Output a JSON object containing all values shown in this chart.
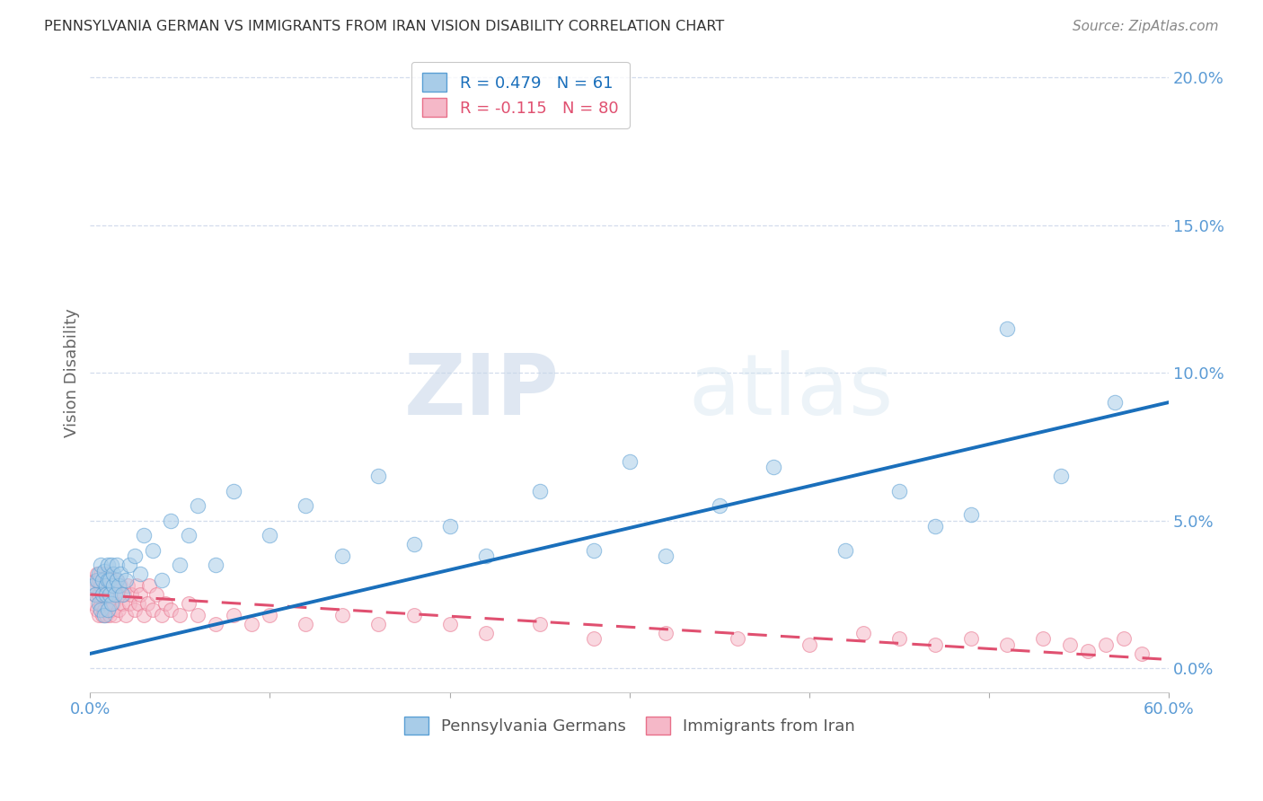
{
  "title": "PENNSYLVANIA GERMAN VS IMMIGRANTS FROM IRAN VISION DISABILITY CORRELATION CHART",
  "source": "Source: ZipAtlas.com",
  "ylabel": "Vision Disability",
  "xlim": [
    0,
    0.6
  ],
  "ylim": [
    -0.008,
    0.208
  ],
  "blue_R": 0.479,
  "blue_N": 61,
  "pink_R": -0.115,
  "pink_N": 80,
  "blue_color": "#a8cce8",
  "pink_color": "#f5b8c8",
  "blue_edge_color": "#5a9fd4",
  "pink_edge_color": "#e8708a",
  "blue_line_color": "#1a6fbb",
  "pink_line_color": "#e05070",
  "watermark_zip": "ZIP",
  "watermark_atlas": "atlas",
  "legend_blue_label": "Pennsylvania Germans",
  "legend_pink_label": "Immigrants from Iran",
  "blue_scatter_x": [
    0.002,
    0.003,
    0.004,
    0.005,
    0.005,
    0.006,
    0.006,
    0.007,
    0.007,
    0.008,
    0.008,
    0.009,
    0.009,
    0.01,
    0.01,
    0.01,
    0.011,
    0.011,
    0.012,
    0.012,
    0.013,
    0.013,
    0.014,
    0.015,
    0.015,
    0.016,
    0.017,
    0.018,
    0.02,
    0.022,
    0.025,
    0.028,
    0.03,
    0.035,
    0.04,
    0.045,
    0.05,
    0.055,
    0.06,
    0.07,
    0.08,
    0.1,
    0.12,
    0.14,
    0.16,
    0.18,
    0.2,
    0.22,
    0.25,
    0.28,
    0.3,
    0.32,
    0.35,
    0.38,
    0.42,
    0.45,
    0.47,
    0.49,
    0.51,
    0.54,
    0.57
  ],
  "blue_scatter_y": [
    0.028,
    0.025,
    0.03,
    0.022,
    0.032,
    0.02,
    0.035,
    0.025,
    0.03,
    0.018,
    0.033,
    0.028,
    0.025,
    0.03,
    0.02,
    0.035,
    0.025,
    0.03,
    0.022,
    0.035,
    0.028,
    0.032,
    0.025,
    0.03,
    0.035,
    0.028,
    0.032,
    0.025,
    0.03,
    0.035,
    0.038,
    0.032,
    0.045,
    0.04,
    0.03,
    0.05,
    0.035,
    0.045,
    0.055,
    0.035,
    0.06,
    0.045,
    0.055,
    0.038,
    0.065,
    0.042,
    0.048,
    0.038,
    0.06,
    0.04,
    0.07,
    0.038,
    0.055,
    0.068,
    0.04,
    0.06,
    0.048,
    0.052,
    0.115,
    0.065,
    0.09
  ],
  "pink_scatter_x": [
    0.002,
    0.002,
    0.003,
    0.003,
    0.004,
    0.004,
    0.005,
    0.005,
    0.005,
    0.006,
    0.006,
    0.006,
    0.007,
    0.007,
    0.008,
    0.008,
    0.008,
    0.009,
    0.009,
    0.01,
    0.01,
    0.01,
    0.011,
    0.011,
    0.012,
    0.012,
    0.013,
    0.013,
    0.014,
    0.015,
    0.015,
    0.016,
    0.017,
    0.018,
    0.019,
    0.02,
    0.021,
    0.022,
    0.023,
    0.025,
    0.026,
    0.027,
    0.028,
    0.03,
    0.032,
    0.033,
    0.035,
    0.037,
    0.04,
    0.042,
    0.045,
    0.05,
    0.055,
    0.06,
    0.07,
    0.08,
    0.09,
    0.1,
    0.12,
    0.14,
    0.16,
    0.18,
    0.2,
    0.22,
    0.25,
    0.28,
    0.32,
    0.36,
    0.4,
    0.43,
    0.45,
    0.47,
    0.49,
    0.51,
    0.53,
    0.545,
    0.555,
    0.565,
    0.575,
    0.585
  ],
  "pink_scatter_y": [
    0.028,
    0.022,
    0.025,
    0.03,
    0.02,
    0.032,
    0.018,
    0.025,
    0.03,
    0.022,
    0.028,
    0.032,
    0.018,
    0.025,
    0.02,
    0.028,
    0.032,
    0.018,
    0.025,
    0.022,
    0.028,
    0.032,
    0.018,
    0.025,
    0.02,
    0.03,
    0.022,
    0.028,
    0.018,
    0.025,
    0.03,
    0.02,
    0.028,
    0.022,
    0.025,
    0.018,
    0.028,
    0.022,
    0.025,
    0.02,
    0.028,
    0.022,
    0.025,
    0.018,
    0.022,
    0.028,
    0.02,
    0.025,
    0.018,
    0.022,
    0.02,
    0.018,
    0.022,
    0.018,
    0.015,
    0.018,
    0.015,
    0.018,
    0.015,
    0.018,
    0.015,
    0.018,
    0.015,
    0.012,
    0.015,
    0.01,
    0.012,
    0.01,
    0.008,
    0.012,
    0.01,
    0.008,
    0.01,
    0.008,
    0.01,
    0.008,
    0.006,
    0.008,
    0.01,
    0.005
  ],
  "blue_trend_x0": 0.0,
  "blue_trend_y0": 0.005,
  "blue_trend_x1": 0.6,
  "blue_trend_y1": 0.09,
  "pink_trend_x0": 0.0,
  "pink_trend_y0": 0.025,
  "pink_trend_x1": 0.6,
  "pink_trend_y1": 0.003
}
